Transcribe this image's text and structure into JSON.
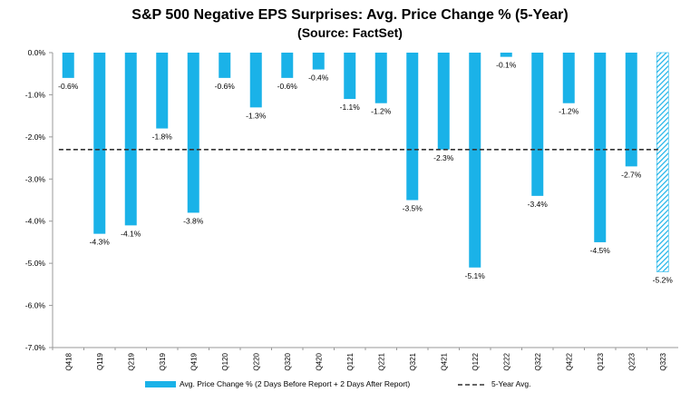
{
  "chart_data": {
    "type": "bar",
    "title": "S&P 500 Negative EPS Surprises: Avg. Price Change % (5-Year)",
    "subtitle": "(Source: FactSet)",
    "categories": [
      "Q418",
      "Q119",
      "Q219",
      "Q319",
      "Q419",
      "Q120",
      "Q220",
      "Q320",
      "Q420",
      "Q121",
      "Q221",
      "Q321",
      "Q421",
      "Q122",
      "Q222",
      "Q322",
      "Q422",
      "Q123",
      "Q223",
      "Q323"
    ],
    "series": [
      {
        "name": "Avg. Price Change % (2 Days Before Report + 2 Days After Report)",
        "values": [
          -0.6,
          -4.3,
          -4.1,
          -1.8,
          -3.8,
          -0.6,
          -1.3,
          -0.6,
          -0.4,
          -1.1,
          -1.2,
          -3.5,
          -2.3,
          -5.1,
          -0.1,
          -3.4,
          -1.2,
          -4.5,
          -2.7,
          -5.2
        ],
        "data_labels": [
          "-0.6%",
          "-4.3%",
          "-4.1%",
          "-1.8%",
          "-3.8%",
          "-0.6%",
          "-1.3%",
          "-0.6%",
          "-0.4%",
          "-1.1%",
          "-1.2%",
          "-3.5%",
          "-2.3%",
          "-5.1%",
          "-0.1%",
          "-3.4%",
          "-1.2%",
          "-4.5%",
          "-2.7%",
          "-5.2%"
        ],
        "color": "#1ab2e8",
        "hatched_last": true
      }
    ],
    "reference_line": {
      "name": "5-Year Avg.",
      "value": -2.3,
      "style": "dashed",
      "color": "#333333"
    },
    "ylim": [
      -7.0,
      0.0
    ],
    "yticks": [
      0.0,
      -1.0,
      -2.0,
      -3.0,
      -4.0,
      -5.0,
      -6.0,
      -7.0
    ],
    "ytick_labels": [
      "0.0%",
      "-1.0%",
      "-2.0%",
      "-3.0%",
      "-4.0%",
      "-5.0%",
      "-6.0%",
      "-7.0%"
    ],
    "grid": false,
    "legend_position": "bottom"
  }
}
